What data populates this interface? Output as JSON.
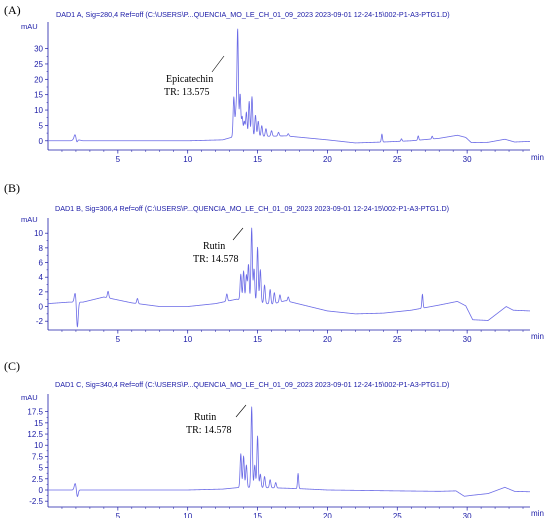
{
  "colors": {
    "axis": "#1a1aa6",
    "trace": "#6a6ae6",
    "annotation": "#000000"
  },
  "chart_data": [
    {
      "type": "line",
      "panel": "(A)",
      "title": "DAD1 A, Sig=280,4 Ref=off (C:\\USERS\\P...QUENCIA_MO_LE_CH_01_09_2023 2023-09-01 12-24-15\\002-P1-A3-PTG1.D)",
      "ylabel": "mAU",
      "xlabel": "min",
      "xlim": [
        0,
        34.5
      ],
      "ylim": [
        -3,
        38
      ],
      "xticks": [
        5,
        10,
        15,
        20,
        25,
        30
      ],
      "yticks": [
        0,
        5,
        10,
        15,
        20,
        25,
        30
      ],
      "annotation": {
        "lines": [
          "Epicatechin",
          "TR: 13.575"
        ],
        "x": 13.575
      },
      "baseline": [
        [
          0,
          0
        ],
        [
          1.6,
          0
        ],
        [
          2.0,
          0.5
        ],
        [
          2.5,
          0
        ],
        [
          6,
          0
        ],
        [
          10,
          0
        ],
        [
          12.5,
          0.3
        ],
        [
          13.2,
          1.2
        ],
        [
          17,
          1.6
        ],
        [
          20,
          0.3
        ],
        [
          22,
          -0.7
        ],
        [
          24,
          -0.4
        ],
        [
          26,
          0
        ],
        [
          28,
          0.8
        ],
        [
          29.3,
          1.8
        ],
        [
          29.9,
          1.1
        ],
        [
          30.3,
          -0.6
        ],
        [
          31.5,
          -0.5
        ],
        [
          32.7,
          0.5
        ],
        [
          33.4,
          -0.4
        ],
        [
          34.5,
          -0.2
        ]
      ],
      "peaks": [
        {
          "x": 1.95,
          "h": 1.8,
          "w": 0.08
        },
        {
          "x": 2.05,
          "h": -1.4,
          "w": 0.06
        },
        {
          "x": 13.3,
          "h": 13.0,
          "w": 0.05
        },
        {
          "x": 13.45,
          "h": 8.0,
          "w": 0.05
        },
        {
          "x": 13.575,
          "h": 35.0,
          "w": 0.05
        },
        {
          "x": 13.75,
          "h": 14.0,
          "w": 0.05
        },
        {
          "x": 13.9,
          "h": 6.5,
          "w": 0.05
        },
        {
          "x": 14.05,
          "h": 5.0,
          "w": 0.05
        },
        {
          "x": 14.2,
          "h": 8.0,
          "w": 0.05
        },
        {
          "x": 14.4,
          "h": 11.5,
          "w": 0.05
        },
        {
          "x": 14.6,
          "h": 13.0,
          "w": 0.05
        },
        {
          "x": 14.85,
          "h": 7.0,
          "w": 0.05
        },
        {
          "x": 15.05,
          "h": 5.0,
          "w": 0.05
        },
        {
          "x": 15.3,
          "h": 3.5,
          "w": 0.05
        },
        {
          "x": 15.6,
          "h": 2.5,
          "w": 0.05
        },
        {
          "x": 16.0,
          "h": 1.8,
          "w": 0.05
        },
        {
          "x": 16.5,
          "h": 1.2,
          "w": 0.05
        },
        {
          "x": 17.2,
          "h": 0.8,
          "w": 0.05
        },
        {
          "x": 23.9,
          "h": 2.6,
          "w": 0.04
        },
        {
          "x": 25.3,
          "h": 0.8,
          "w": 0.04
        },
        {
          "x": 26.5,
          "h": 1.4,
          "w": 0.04
        },
        {
          "x": 27.5,
          "h": 0.9,
          "w": 0.04
        }
      ]
    },
    {
      "type": "line",
      "panel": "(B)",
      "title": "DAD1 B, Sig=306,4 Ref=off (C:\\USERS\\P...QUENCIA_MO_LE_CH_01_09_2023 2023-09-01 12-24-15\\002-P1-A3-PTG1.D)",
      "ylabel": "mAU",
      "xlabel": "min",
      "xlim": [
        0,
        34.5
      ],
      "ylim": [
        -3.2,
        11.8
      ],
      "xticks": [
        5,
        10,
        15,
        20,
        25,
        30
      ],
      "yticks": [
        -2,
        0,
        2,
        4,
        6,
        8,
        10
      ],
      "annotation": {
        "lines": [
          "Rutin",
          "TR: 14.578"
        ],
        "x": 14.578
      },
      "baseline": [
        [
          0,
          0.4
        ],
        [
          1.5,
          0.6
        ],
        [
          2.5,
          0.6
        ],
        [
          4,
          1.3
        ],
        [
          6,
          0.5
        ],
        [
          8,
          0
        ],
        [
          10,
          0
        ],
        [
          12,
          0.4
        ],
        [
          13.5,
          1.0
        ],
        [
          16,
          0.3
        ],
        [
          17,
          0.8
        ],
        [
          20,
          -0.6
        ],
        [
          22,
          -1.0
        ],
        [
          24,
          -0.9
        ],
        [
          26,
          -0.5
        ],
        [
          28,
          0.2
        ],
        [
          29.3,
          0.7
        ],
        [
          29.9,
          0.1
        ],
        [
          30.4,
          -1.8
        ],
        [
          31.5,
          -1.9
        ],
        [
          32.8,
          0
        ],
        [
          33.3,
          -0.5
        ],
        [
          34.5,
          -0.6
        ]
      ],
      "peaks": [
        {
          "x": 1.95,
          "h": 1.3,
          "w": 0.07
        },
        {
          "x": 2.1,
          "h": -3.5,
          "w": 0.06
        },
        {
          "x": 4.3,
          "h": 0.9,
          "w": 0.05
        },
        {
          "x": 6.4,
          "h": 0.7,
          "w": 0.05
        },
        {
          "x": 12.8,
          "h": 1.0,
          "w": 0.05
        },
        {
          "x": 13.8,
          "h": 3.5,
          "w": 0.05
        },
        {
          "x": 14.0,
          "h": 4.0,
          "w": 0.05
        },
        {
          "x": 14.2,
          "h": 3.5,
          "w": 0.05
        },
        {
          "x": 14.35,
          "h": 5.0,
          "w": 0.05
        },
        {
          "x": 14.578,
          "h": 10.0,
          "w": 0.05
        },
        {
          "x": 14.75,
          "h": 4.5,
          "w": 0.05
        },
        {
          "x": 15.0,
          "h": 7.5,
          "w": 0.05
        },
        {
          "x": 15.2,
          "h": 4.5,
          "w": 0.05
        },
        {
          "x": 15.5,
          "h": 2.5,
          "w": 0.05
        },
        {
          "x": 15.9,
          "h": 2.0,
          "w": 0.05
        },
        {
          "x": 16.2,
          "h": 1.5,
          "w": 0.05
        },
        {
          "x": 16.6,
          "h": 1.0,
          "w": 0.05
        },
        {
          "x": 17.2,
          "h": 0.6,
          "w": 0.05
        },
        {
          "x": 26.8,
          "h": 1.9,
          "w": 0.04
        }
      ]
    },
    {
      "type": "line",
      "panel": "(C)",
      "title": "DAD1 C, Sig=340,4 Ref=off (C:\\USERS\\P...QUENCIA_MO_LE_CH_01_09_2023 2023-09-01 12-24-15\\002-P1-A3-PTG1.D)",
      "ylabel": "mAU",
      "xlabel": "min",
      "xlim": [
        0,
        34.5
      ],
      "ylim": [
        -3.8,
        21
      ],
      "xticks": [
        5,
        10,
        15,
        20,
        25,
        30
      ],
      "yticks": [
        -2.5,
        0,
        2.5,
        5,
        7.5,
        10,
        12.5,
        15,
        17.5
      ],
      "annotation": {
        "lines": [
          "Rutin",
          "TR: 14.578"
        ],
        "x": 14.578
      },
      "baseline": [
        [
          0,
          0
        ],
        [
          1.6,
          0
        ],
        [
          2.5,
          0
        ],
        [
          6,
          0
        ],
        [
          10,
          0
        ],
        [
          12.5,
          0.2
        ],
        [
          13.8,
          0.6
        ],
        [
          16,
          0.5
        ],
        [
          18,
          0.3
        ],
        [
          20,
          0
        ],
        [
          25,
          -0.2
        ],
        [
          28,
          -0.3
        ],
        [
          29.2,
          -0.2
        ],
        [
          29.8,
          -1.4
        ],
        [
          30.3,
          -1.2
        ],
        [
          31.5,
          -0.8
        ],
        [
          32.7,
          0.6
        ],
        [
          33.4,
          -0.3
        ],
        [
          34.5,
          -0.4
        ]
      ],
      "peaks": [
        {
          "x": 1.95,
          "h": 1.5,
          "w": 0.07
        },
        {
          "x": 2.1,
          "h": -1.6,
          "w": 0.06
        },
        {
          "x": 13.8,
          "h": 7.5,
          "w": 0.05
        },
        {
          "x": 14.0,
          "h": 7.0,
          "w": 0.05
        },
        {
          "x": 14.2,
          "h": 5.0,
          "w": 0.05
        },
        {
          "x": 14.578,
          "h": 18.0,
          "w": 0.05
        },
        {
          "x": 14.8,
          "h": 5.0,
          "w": 0.05
        },
        {
          "x": 15.0,
          "h": 11.5,
          "w": 0.05
        },
        {
          "x": 15.2,
          "h": 3.0,
          "w": 0.05
        },
        {
          "x": 15.5,
          "h": 2.5,
          "w": 0.05
        },
        {
          "x": 15.9,
          "h": 1.8,
          "w": 0.05
        },
        {
          "x": 16.3,
          "h": 1.2,
          "w": 0.05
        },
        {
          "x": 17.9,
          "h": 3.4,
          "w": 0.04
        }
      ]
    }
  ]
}
